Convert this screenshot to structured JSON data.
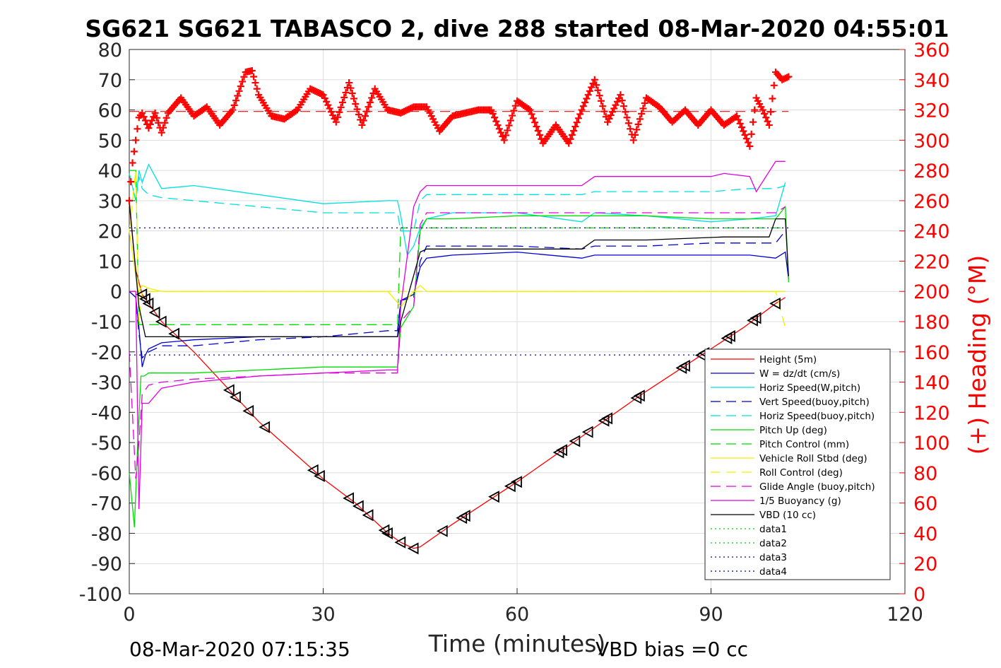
{
  "chart_data": {
    "type": "line",
    "title": "SG621 SG621 TABASCO 2, dive 288 started 08-Mar-2020 04:55:01",
    "xlabel": "Time (minutes)",
    "ylabel_right": "(+) Heading (°M)",
    "footer_left": "08-Mar-2020 07:15:35",
    "footer_right": "VBD bias =0 cc",
    "xlim": [
      0,
      120
    ],
    "ylim": [
      -100,
      80
    ],
    "y2lim": [
      0,
      360
    ],
    "xticks": [
      "0",
      "30",
      "60",
      "90",
      "120"
    ],
    "yticks": [
      "80",
      "70",
      "60",
      "50",
      "40",
      "30",
      "20",
      "10",
      "0",
      "-10",
      "-20",
      "-30",
      "-40",
      "-50",
      "-60",
      "-70",
      "-80",
      "-90",
      "-100"
    ],
    "y2ticks": [
      "360",
      "340",
      "320",
      "300",
      "280",
      "260",
      "240",
      "220",
      "200",
      "180",
      "160",
      "140",
      "120",
      "100",
      "80",
      "60",
      "40",
      "20",
      "0"
    ],
    "grid": true,
    "legend_position": "bottom-right",
    "series": [
      {
        "name": "Height (5m)",
        "color": "#ff0000",
        "style": "solid",
        "x": [
          0,
          1,
          2,
          3,
          5,
          10,
          20,
          30,
          35,
          40,
          42,
          43,
          44,
          45,
          46,
          50,
          60,
          70,
          80,
          90,
          95,
          100,
          101.5
        ],
        "y": [
          29,
          7,
          -1,
          -4,
          -10,
          -20,
          -43,
          -62,
          -70,
          -80,
          -83,
          -84,
          -85,
          -84.5,
          -83,
          -77,
          -63,
          -48,
          -33,
          -19,
          -12,
          -4,
          -2
        ]
      },
      {
        "name": "W = dz/dt (cm/s)",
        "color": "#0000cc",
        "style": "solid",
        "x": [
          0,
          1,
          1.5,
          2,
          2.5,
          3,
          5,
          10,
          20,
          30,
          40,
          41.5,
          42,
          44,
          45,
          46,
          50,
          60,
          70,
          72,
          80,
          90,
          96,
          100,
          101.5,
          102
        ],
        "y": [
          0,
          -2,
          -12,
          -25,
          -21,
          -19,
          -17,
          -16,
          -15,
          -15,
          -15,
          -15,
          -3,
          -1,
          8,
          11,
          12,
          13,
          11,
          12,
          12,
          12,
          12,
          11,
          13,
          4
        ]
      },
      {
        "name": "Horiz Speed(W,pitch)",
        "color": "#00e0e0",
        "style": "solid",
        "x": [
          0,
          1,
          1.5,
          2,
          3,
          5,
          10,
          20,
          30,
          40,
          41.5,
          42,
          43,
          44,
          45,
          46,
          50,
          60,
          70,
          72,
          80,
          90,
          96,
          100,
          101.5
        ],
        "y": [
          39,
          30,
          40,
          36,
          42,
          34,
          35,
          32,
          29,
          30,
          30,
          25,
          12,
          15,
          21,
          24,
          26,
          26,
          23,
          26,
          25,
          23,
          24,
          25,
          36
        ]
      },
      {
        "name": "Vert Speed(buoy,pitch)",
        "color": "#0000cc",
        "style": "dashed",
        "x": [
          0,
          1,
          1.5,
          2,
          3,
          5,
          10,
          20,
          30,
          40,
          41.5,
          42,
          44,
          45,
          46,
          50,
          60,
          70,
          72,
          80,
          90,
          96,
          100,
          101.5
        ],
        "y": [
          0,
          -2,
          -14,
          -22,
          -20,
          -18,
          -18,
          -16,
          -15,
          -13,
          -13,
          -3,
          -2,
          10,
          15,
          15,
          15,
          14,
          15,
          15,
          16,
          16,
          16,
          20
        ]
      },
      {
        "name": "Horiz Speed(buoy,pitch)",
        "color": "#00e0e0",
        "style": "dashed",
        "x": [
          0,
          1,
          1.5,
          2,
          3,
          5,
          10,
          20,
          30,
          40,
          41.5,
          42,
          44,
          45,
          46,
          50,
          60,
          70,
          72,
          80,
          90,
          96,
          100,
          101.5
        ],
        "y": [
          39,
          30,
          38,
          34,
          32,
          31,
          30,
          28,
          26,
          26,
          26,
          20,
          20,
          30,
          32,
          32,
          32,
          32,
          33,
          33,
          33,
          34,
          34,
          35
        ]
      },
      {
        "name": "Pitch Up (deg)",
        "color": "#00dd00",
        "style": "solid",
        "x": [
          0,
          0.8,
          1.3,
          1.8,
          2.3,
          3,
          5,
          10,
          20,
          30,
          40,
          41.5,
          42,
          44,
          45,
          46,
          50,
          60,
          70,
          80,
          90,
          96,
          100,
          101.5,
          102
        ],
        "y": [
          -60,
          -78,
          -50,
          -28,
          -28,
          -27,
          -27,
          -27,
          -26,
          -25,
          -25,
          -25,
          -12,
          -5,
          20,
          24,
          24,
          25,
          25,
          25,
          24,
          24,
          24,
          28,
          3
        ]
      },
      {
        "name": "Pitch Control (mm)",
        "color": "#00dd00",
        "style": "dashed",
        "x": [
          0,
          1,
          1.5,
          2,
          5,
          10,
          20,
          30,
          41,
          41.5,
          42,
          44,
          45,
          100,
          101.5
        ],
        "y": [
          40,
          40,
          -11,
          -11,
          -11,
          -11,
          -11,
          -11,
          -11,
          -11,
          21,
          21,
          21,
          21,
          21
        ]
      },
      {
        "name": "Vehicle Roll Stbd (deg)",
        "color": "#f0f000",
        "style": "solid",
        "x": [
          0,
          1,
          1.5,
          2,
          3,
          5,
          10,
          20,
          30,
          40,
          42,
          44,
          45,
          46,
          50,
          60,
          70,
          80,
          90,
          96,
          100,
          101.5
        ],
        "y": [
          20,
          5,
          0,
          2,
          1,
          0,
          0,
          0,
          0,
          0,
          -5,
          0,
          2,
          0,
          0,
          0,
          0,
          0,
          0,
          0,
          0,
          0
        ]
      },
      {
        "name": "Roll Control (deg)",
        "color": "#f0f000",
        "style": "dashed",
        "x": [
          0,
          1,
          1.5,
          2,
          5,
          10,
          20,
          30,
          40,
          42,
          44,
          46,
          50,
          60,
          70,
          80,
          90,
          100,
          101.5
        ],
        "y": [
          20,
          40,
          -10,
          0,
          0,
          0,
          0,
          0,
          0,
          0,
          0,
          0,
          0,
          0,
          0,
          0,
          0,
          0,
          -12
        ]
      },
      {
        "name": "Glide Angle (buoy,pitch)",
        "color": "#e000e0",
        "style": "dashed",
        "x": [
          0,
          1,
          1.5,
          2,
          3,
          5,
          10,
          20,
          30,
          40,
          41.5,
          42,
          44,
          45,
          46,
          50,
          60,
          70,
          80,
          90,
          96,
          100,
          101.5
        ],
        "y": [
          -20,
          -62,
          -50,
          -34,
          -31,
          -30,
          -29,
          -28,
          -27,
          -27,
          -27,
          -10,
          -5,
          22,
          26,
          26,
          26,
          26,
          26,
          26,
          26,
          26,
          28
        ]
      },
      {
        "name": "1/5 Buoyancy (g)",
        "color": "#e000e0",
        "style": "solid",
        "x": [
          0,
          1,
          1.5,
          2,
          3,
          5,
          10,
          20,
          30,
          40,
          41.5,
          42,
          44,
          45,
          46,
          50,
          60,
          70,
          72,
          90,
          92,
          96,
          97,
          100,
          101.5
        ],
        "y": [
          0,
          0,
          -72,
          -37,
          -37,
          -32,
          -30,
          -28,
          -27,
          -26,
          -26,
          -5,
          28,
          33,
          35,
          35,
          35,
          35,
          38,
          38,
          39,
          38,
          33,
          43,
          43
        ]
      },
      {
        "name": "VBD (10 cc)",
        "color": "#000000",
        "style": "solid",
        "x": [
          0,
          1.5,
          2.5,
          3,
          10,
          20,
          30,
          41,
          41.5,
          42,
          45,
          46,
          60,
          70,
          72,
          80,
          92,
          96,
          99,
          100,
          101.5,
          102
        ],
        "y": [
          30,
          -5,
          -15,
          -15,
          -15,
          -15,
          -15,
          -15,
          -15,
          -10,
          13,
          14,
          14,
          14,
          17,
          17,
          18,
          18,
          18,
          24,
          24,
          5
        ]
      },
      {
        "name": "data1",
        "color": "#00cc00",
        "style": "dotted",
        "x": [],
        "y": []
      },
      {
        "name": "data2",
        "color": "#00cc00",
        "style": "dotted",
        "x": [],
        "y": []
      },
      {
        "name": "data3",
        "color": "#000099",
        "style": "dotted",
        "x": [
          0,
          102
        ],
        "y": [
          21,
          21
        ]
      },
      {
        "name": "data4",
        "color": "#000099",
        "style": "dotted",
        "x": [
          0,
          102
        ],
        "y": [
          -21,
          -21
        ]
      }
    ],
    "heading_series": {
      "color": "#ff0000",
      "marker": "+",
      "axis": "right",
      "reference_value": 319,
      "x": [
        0,
        0.5,
        1,
        1.5,
        2,
        3,
        4,
        5,
        6,
        8,
        10,
        12,
        14,
        16,
        18,
        19,
        20,
        22,
        24,
        26,
        28,
        30,
        32,
        34,
        36,
        38,
        40,
        42,
        44,
        46,
        48,
        50,
        52,
        54,
        56,
        58,
        60,
        62,
        64,
        66,
        68,
        70,
        72,
        74,
        76,
        78,
        80,
        82,
        84,
        86,
        88,
        90,
        92,
        94,
        96,
        97,
        98,
        99,
        100,
        101,
        102
      ],
      "y": [
        260,
        285,
        300,
        315,
        318,
        308,
        318,
        305,
        318,
        328,
        316,
        322,
        310,
        320,
        345,
        346,
        330,
        316,
        314,
        320,
        334,
        330,
        312,
        338,
        310,
        334,
        320,
        318,
        322,
        322,
        306,
        316,
        318,
        320,
        320,
        300,
        326,
        320,
        298,
        310,
        298,
        320,
        340,
        312,
        330,
        300,
        328,
        322,
        312,
        320,
        310,
        320,
        310,
        316,
        296,
        328,
        320,
        310,
        345,
        340,
        342
      ]
    },
    "markers": {
      "shape": "triangle",
      "color": "#000000",
      "x": [
        2,
        2.5,
        3,
        4,
        5,
        7,
        15.5,
        16.5,
        18.5,
        21,
        28.5,
        29.5,
        34,
        35.5,
        37,
        39.5,
        40,
        42,
        44,
        48.5,
        51.5,
        52,
        56.5,
        59,
        60,
        66.5,
        67,
        69,
        71,
        73.5,
        74,
        78.5,
        79,
        85.5,
        86,
        88.5,
        89,
        92.5,
        93,
        96.5,
        97,
        100
      ]
    }
  }
}
